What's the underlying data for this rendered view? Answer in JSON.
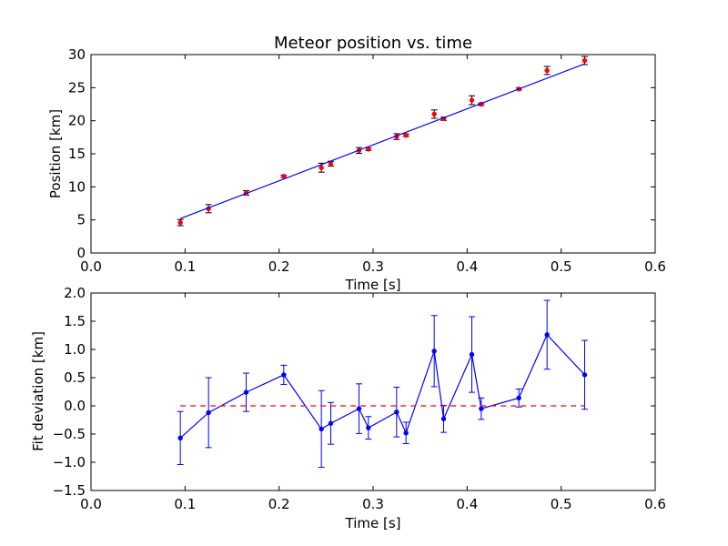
{
  "colors": {
    "fit_line": "#0000ff",
    "data_points": "#ff0000",
    "residual_line": "#0000ff",
    "zero_line": "#ff0000",
    "axes": "#000000",
    "background": "#ffffff"
  },
  "chart_data": [
    {
      "type": "scatter",
      "title": "Meteor position vs. time",
      "xlabel": "Time [s]",
      "ylabel": "Position [km]",
      "xlim": [
        0.0,
        0.6
      ],
      "ylim": [
        0,
        30
      ],
      "xticks": [
        "0.0",
        "0.1",
        "0.2",
        "0.3",
        "0.4",
        "0.5",
        "0.6"
      ],
      "yticks": [
        "0",
        "5",
        "10",
        "15",
        "20",
        "25",
        "30"
      ],
      "grid": false,
      "series": [
        {
          "kind": "errorbar-points",
          "x": [
            0.095,
            0.125,
            0.165,
            0.205,
            0.245,
            0.255,
            0.285,
            0.295,
            0.325,
            0.335,
            0.365,
            0.375,
            0.405,
            0.415,
            0.455,
            0.485,
            0.525
          ],
          "y": [
            4.6,
            6.7,
            9.1,
            11.6,
            12.9,
            13.5,
            15.5,
            15.7,
            17.6,
            17.8,
            21.0,
            20.3,
            23.1,
            22.5,
            24.8,
            27.6,
            29.1
          ],
          "yerr": [
            0.47,
            0.62,
            0.34,
            0.17,
            0.68,
            0.37,
            0.44,
            0.2,
            0.44,
            0.19,
            0.63,
            0.24,
            0.67,
            0.19,
            0.16,
            0.61,
            0.61
          ]
        },
        {
          "kind": "fit-line",
          "x": [
            0.095,
            0.525
          ],
          "y": [
            5.2,
            28.6
          ]
        }
      ]
    },
    {
      "type": "line",
      "title": "",
      "xlabel": "Time [s]",
      "ylabel": "Fit deviation [km]",
      "xlim": [
        0.0,
        0.6
      ],
      "ylim": [
        -1.5,
        2.0
      ],
      "xticks": [
        "0.0",
        "0.1",
        "0.2",
        "0.3",
        "0.4",
        "0.5",
        "0.6"
      ],
      "yticks": [
        "−1.5",
        "−1.0",
        "−0.5",
        "0.0",
        "0.5",
        "1.0",
        "1.5",
        "2.0"
      ],
      "grid": false,
      "series": [
        {
          "kind": "errorbar-line",
          "x": [
            0.095,
            0.125,
            0.165,
            0.205,
            0.245,
            0.255,
            0.285,
            0.295,
            0.325,
            0.335,
            0.365,
            0.375,
            0.405,
            0.415,
            0.455,
            0.485,
            0.525
          ],
          "y": [
            -0.57,
            -0.12,
            0.24,
            0.55,
            -0.41,
            -0.31,
            -0.05,
            -0.39,
            -0.11,
            -0.48,
            0.97,
            -0.23,
            0.91,
            -0.05,
            0.14,
            1.26,
            0.55
          ],
          "yerr": [
            0.47,
            0.62,
            0.34,
            0.17,
            0.68,
            0.37,
            0.44,
            0.2,
            0.44,
            0.19,
            0.63,
            0.24,
            0.67,
            0.19,
            0.16,
            0.61,
            0.61
          ]
        },
        {
          "kind": "zero-reference",
          "x": [
            0.095,
            0.525
          ],
          "y": [
            0.0,
            0.0
          ],
          "style": "dashed"
        }
      ]
    }
  ]
}
